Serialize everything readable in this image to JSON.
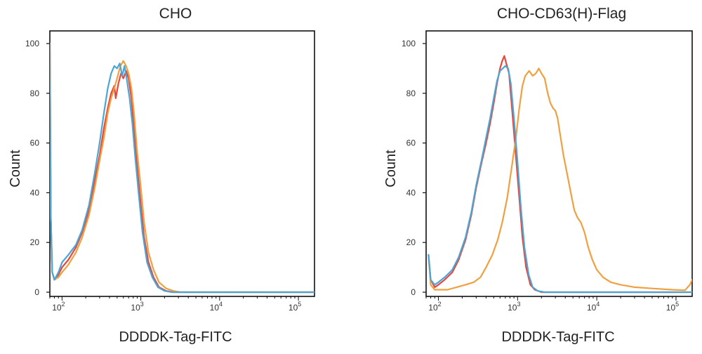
{
  "chart_data": [
    {
      "type": "line",
      "title": "CHO",
      "xlabel": "DDDDK-Tag-FITC",
      "ylabel": "Count",
      "x_scale": "log",
      "xlim": [
        70,
        160000
      ],
      "ylim": [
        0,
        100
      ],
      "x_ticks": [
        {
          "base": "10",
          "exp": "2",
          "value": 100
        },
        {
          "base": "10",
          "exp": "3",
          "value": 1000
        },
        {
          "base": "10",
          "exp": "4",
          "value": 10000
        },
        {
          "base": "10",
          "exp": "5",
          "value": 100000
        }
      ],
      "y_ticks": [
        "0",
        "20",
        "40",
        "60",
        "80",
        "100"
      ],
      "y_tick_values": [
        0,
        20,
        40,
        60,
        80,
        100
      ],
      "series": [
        {
          "color": "#e8463a",
          "points": [
            [
              70,
              100
            ],
            [
              72,
              30
            ],
            [
              75,
              8
            ],
            [
              80,
              5
            ],
            [
              90,
              7
            ],
            [
              100,
              10
            ],
            [
              120,
              13
            ],
            [
              150,
              18
            ],
            [
              180,
              24
            ],
            [
              220,
              33
            ],
            [
              260,
              45
            ],
            [
              300,
              55
            ],
            [
              340,
              66
            ],
            [
              380,
              74
            ],
            [
              420,
              80
            ],
            [
              460,
              83
            ],
            [
              480,
              78
            ],
            [
              520,
              84
            ],
            [
              560,
              88
            ],
            [
              600,
              86
            ],
            [
              650,
              89
            ],
            [
              700,
              86
            ],
            [
              760,
              78
            ],
            [
              820,
              66
            ],
            [
              900,
              50
            ],
            [
              1000,
              35
            ],
            [
              1100,
              22
            ],
            [
              1250,
              12
            ],
            [
              1450,
              6
            ],
            [
              1700,
              2
            ],
            [
              2100,
              0.5
            ],
            [
              2600,
              0
            ],
            [
              160000,
              0
            ]
          ]
        },
        {
          "color": "#f0a040",
          "points": [
            [
              70,
              100
            ],
            [
              72,
              30
            ],
            [
              75,
              8
            ],
            [
              80,
              5
            ],
            [
              90,
              6
            ],
            [
              100,
              8
            ],
            [
              120,
              11
            ],
            [
              150,
              16
            ],
            [
              180,
              22
            ],
            [
              220,
              31
            ],
            [
              260,
              42
            ],
            [
              300,
              53
            ],
            [
              340,
              62
            ],
            [
              380,
              72
            ],
            [
              420,
              78
            ],
            [
              460,
              82
            ],
            [
              500,
              86
            ],
            [
              550,
              91
            ],
            [
              600,
              93
            ],
            [
              650,
              91
            ],
            [
              700,
              88
            ],
            [
              760,
              82
            ],
            [
              820,
              72
            ],
            [
              900,
              56
            ],
            [
              1000,
              42
            ],
            [
              1100,
              28
            ],
            [
              1250,
              16
            ],
            [
              1450,
              9
            ],
            [
              1700,
              4
            ],
            [
              2100,
              1.5
            ],
            [
              2600,
              0.5
            ],
            [
              3200,
              0
            ],
            [
              160000,
              0
            ]
          ]
        },
        {
          "color": "#4aa6d6",
          "points": [
            [
              70,
              100
            ],
            [
              72,
              30
            ],
            [
              75,
              8
            ],
            [
              80,
              5
            ],
            [
              90,
              8
            ],
            [
              100,
              12
            ],
            [
              120,
              15
            ],
            [
              150,
              19
            ],
            [
              180,
              25
            ],
            [
              220,
              35
            ],
            [
              260,
              48
            ],
            [
              300,
              60
            ],
            [
              340,
              72
            ],
            [
              380,
              82
            ],
            [
              420,
              88
            ],
            [
              460,
              91
            ],
            [
              500,
              90
            ],
            [
              540,
              92
            ],
            [
              580,
              87
            ],
            [
              620,
              91
            ],
            [
              660,
              86
            ],
            [
              720,
              78
            ],
            [
              780,
              68
            ],
            [
              850,
              54
            ],
            [
              950,
              38
            ],
            [
              1050,
              24
            ],
            [
              1200,
              12
            ],
            [
              1400,
              6
            ],
            [
              1650,
              2
            ],
            [
              2000,
              0.5
            ],
            [
              2500,
              0
            ],
            [
              160000,
              0
            ]
          ]
        }
      ]
    },
    {
      "type": "line",
      "title": "CHO-CD63(H)-Flag",
      "xlabel": "DDDDK-Tag-FITC",
      "ylabel": "Count",
      "x_scale": "log",
      "xlim": [
        70,
        160000
      ],
      "ylim": [
        0,
        100
      ],
      "x_ticks": [
        {
          "base": "10",
          "exp": "2",
          "value": 100
        },
        {
          "base": "10",
          "exp": "3",
          "value": 1000
        },
        {
          "base": "10",
          "exp": "4",
          "value": 10000
        },
        {
          "base": "10",
          "exp": "5",
          "value": 100000
        }
      ],
      "y_ticks": [
        "0",
        "20",
        "40",
        "60",
        "80",
        "100"
      ],
      "y_tick_values": [
        0,
        20,
        40,
        60,
        80,
        100
      ],
      "series": [
        {
          "color": "#e8463a",
          "points": [
            [
              75,
              15
            ],
            [
              80,
              5
            ],
            [
              90,
              2
            ],
            [
              100,
              3
            ],
            [
              120,
              5
            ],
            [
              150,
              8
            ],
            [
              180,
              13
            ],
            [
              220,
              21
            ],
            [
              260,
              31
            ],
            [
              300,
              42
            ],
            [
              350,
              52
            ],
            [
              400,
              60
            ],
            [
              450,
              68
            ],
            [
              500,
              76
            ],
            [
              550,
              84
            ],
            [
              600,
              90
            ],
            [
              640,
              93
            ],
            [
              680,
              95
            ],
            [
              720,
              92
            ],
            [
              780,
              88
            ],
            [
              860,
              72
            ],
            [
              950,
              55
            ],
            [
              1050,
              38
            ],
            [
              1150,
              22
            ],
            [
              1280,
              10
            ],
            [
              1450,
              3
            ],
            [
              1650,
              1
            ],
            [
              2000,
              0
            ],
            [
              160000,
              0
            ]
          ]
        },
        {
          "color": "#f0a040",
          "points": [
            [
              75,
              15
            ],
            [
              80,
              3
            ],
            [
              90,
              1
            ],
            [
              100,
              1
            ],
            [
              130,
              1
            ],
            [
              170,
              2
            ],
            [
              220,
              3
            ],
            [
              280,
              4
            ],
            [
              340,
              6
            ],
            [
              400,
              10
            ],
            [
              480,
              15
            ],
            [
              560,
              21
            ],
            [
              640,
              28
            ],
            [
              740,
              38
            ],
            [
              850,
              51
            ],
            [
              950,
              62
            ],
            [
              1050,
              74
            ],
            [
              1150,
              83
            ],
            [
              1250,
              87
            ],
            [
              1400,
              89
            ],
            [
              1550,
              87
            ],
            [
              1700,
              88
            ],
            [
              1850,
              90
            ],
            [
              2000,
              88
            ],
            [
              2200,
              86
            ],
            [
              2400,
              80
            ],
            [
              2600,
              76
            ],
            [
              2800,
              74
            ],
            [
              3000,
              73
            ],
            [
              3200,
              70
            ],
            [
              3500,
              62
            ],
            [
              3800,
              55
            ],
            [
              4200,
              48
            ],
            [
              4700,
              40
            ],
            [
              5200,
              33
            ],
            [
              5700,
              30
            ],
            [
              6300,
              28
            ],
            [
              7000,
              24
            ],
            [
              7800,
              18
            ],
            [
              8800,
              13
            ],
            [
              10000,
              9
            ],
            [
              12000,
              6
            ],
            [
              15000,
              4
            ],
            [
              20000,
              3
            ],
            [
              30000,
              2
            ],
            [
              50000,
              1.5
            ],
            [
              90000,
              1
            ],
            [
              130000,
              0.8
            ],
            [
              150000,
              3
            ],
            [
              160000,
              5
            ]
          ]
        },
        {
          "color": "#4aa6d6",
          "points": [
            [
              75,
              15
            ],
            [
              80,
              5
            ],
            [
              90,
              3
            ],
            [
              100,
              4
            ],
            [
              120,
              6
            ],
            [
              150,
              9
            ],
            [
              180,
              14
            ],
            [
              220,
              22
            ],
            [
              260,
              32
            ],
            [
              300,
              43
            ],
            [
              350,
              53
            ],
            [
              400,
              62
            ],
            [
              450,
              70
            ],
            [
              500,
              78
            ],
            [
              550,
              85
            ],
            [
              600,
              89
            ],
            [
              650,
              90
            ],
            [
              700,
              91
            ],
            [
              760,
              90
            ],
            [
              820,
              84
            ],
            [
              900,
              70
            ],
            [
              1000,
              52
            ],
            [
              1100,
              34
            ],
            [
              1220,
              18
            ],
            [
              1380,
              7
            ],
            [
              1550,
              2
            ],
            [
              1800,
              0.5
            ],
            [
              2200,
              0
            ],
            [
              160000,
              0
            ]
          ]
        }
      ]
    }
  ]
}
